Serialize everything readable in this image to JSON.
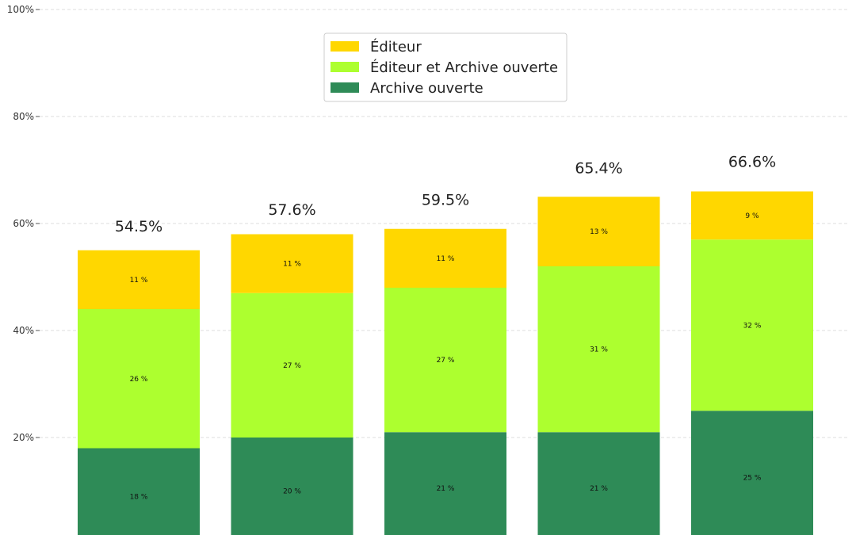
{
  "chart_data": {
    "type": "bar",
    "stacked": true,
    "categories": [
      "",
      "",
      "",
      "",
      ""
    ],
    "series": [
      {
        "name": "Archive ouverte",
        "color": "#2e8b57",
        "values": [
          18,
          20,
          21,
          21,
          25
        ],
        "labels": [
          "18 %",
          "20 %",
          "21 %",
          "21 %",
          "25 %"
        ]
      },
      {
        "name": "Éditeur et Archive ouverte",
        "color": "#adff2f",
        "values": [
          26,
          27,
          27,
          31,
          32
        ],
        "labels": [
          "26 %",
          "27 %",
          "27 %",
          "31 %",
          "32 %"
        ]
      },
      {
        "name": "Éditeur",
        "color": "#ffd700",
        "values": [
          11,
          11,
          11,
          13,
          9
        ],
        "labels": [
          "11 %",
          "11 %",
          "11 %",
          "13 %",
          "9 %"
        ]
      }
    ],
    "totals": [
      54.5,
      57.6,
      59.5,
      65.4,
      66.6
    ],
    "total_labels": [
      "54.5%",
      "57.6%",
      "59.5%",
      "65.4%",
      "66.6%"
    ],
    "yticks": [
      20,
      40,
      60,
      80,
      100
    ],
    "ytick_labels": [
      "20%",
      "40%",
      "60%",
      "80%",
      "100%"
    ],
    "ylim": [
      0,
      100
    ],
    "grid": true,
    "legend_position": "top-center",
    "legend_order": [
      "Éditeur",
      "Éditeur et Archive ouverte",
      "Archive ouverte"
    ],
    "title": "",
    "xlabel": "",
    "ylabel": ""
  }
}
